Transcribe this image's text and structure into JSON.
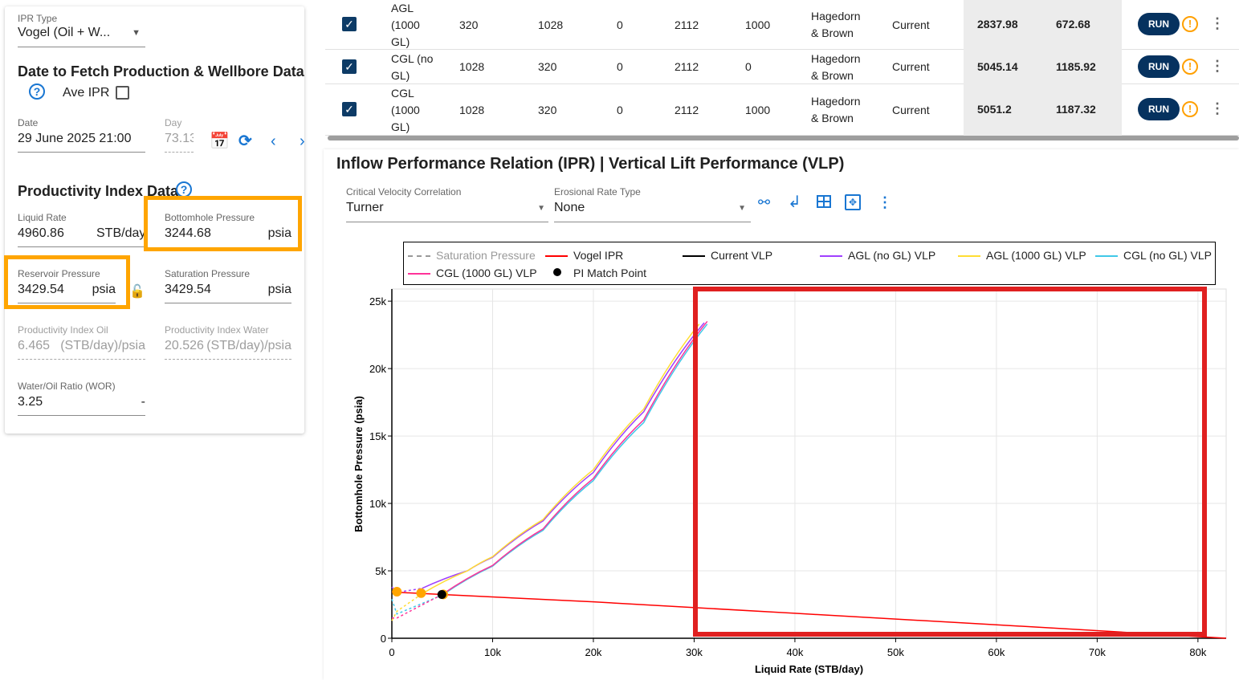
{
  "left_panel": {
    "ipr_type": {
      "label": "IPR Type",
      "value": "Vogel (Oil + W..."
    },
    "date_section_title": "Date to Fetch Production & Wellbore Data",
    "ave_ipr_label": "Ave IPR",
    "ave_ipr_checked": false,
    "date": {
      "label": "Date",
      "value": "29 June 2025 21:00"
    },
    "day": {
      "label": "Day",
      "value": "73.13"
    },
    "pi_section_title": "Productivity Index Data",
    "liquid_rate": {
      "label": "Liquid Rate",
      "value": "4960.86",
      "unit": "STB/day"
    },
    "bhp": {
      "label": "Bottomhole Pressure",
      "value": "3244.68",
      "unit": "psia"
    },
    "reservoir_pressure": {
      "label": "Reservoir Pressure",
      "value": "3429.54",
      "unit": "psia"
    },
    "saturation_pressure": {
      "label": "Saturation Pressure",
      "value": "3429.54",
      "unit": "psia"
    },
    "pi_oil": {
      "label": "Productivity Index Oil",
      "value": "6.465",
      "unit": "(STB/day)/psia"
    },
    "pi_water": {
      "label": "Productivity Index Water",
      "value": "20.526",
      "unit": "(STB/day)/psia"
    },
    "wor": {
      "label": "Water/Oil Ratio (WOR)",
      "value": "3.25",
      "unit": "-"
    },
    "highlight_color": "#ffa500"
  },
  "table": {
    "rows": [
      {
        "name": "AGL (1000 GL)",
        "c1": "320",
        "c2": "1028",
        "c3": "0",
        "c4": "2112",
        "c5": "1000",
        "correlation": "Hagedorn & Brown",
        "status": "Current",
        "r1": "2837.98",
        "r2": "672.68",
        "run": "RUN"
      },
      {
        "name": "CGL (no GL)",
        "c1": "1028",
        "c2": "320",
        "c3": "0",
        "c4": "2112",
        "c5": "0",
        "correlation": "Hagedorn & Brown",
        "status": "Current",
        "r1": "5045.14",
        "r2": "1185.92",
        "run": "RUN"
      },
      {
        "name": "CGL (1000 GL)",
        "c1": "1028",
        "c2": "320",
        "c3": "0",
        "c4": "2112",
        "c5": "1000",
        "correlation": "Hagedorn & Brown",
        "status": "Current",
        "r1": "5051.2",
        "r2": "1187.32",
        "run": "RUN"
      }
    ]
  },
  "chart_panel": {
    "title": "Inflow Performance Relation (IPR) | Vertical Lift Performance (VLP)",
    "critical_velocity": {
      "label": "Critical Velocity Correlation",
      "value": "Turner"
    },
    "erosional_rate": {
      "label": "Erosional Rate Type",
      "value": "None"
    },
    "toolbar_icons": [
      "nodes-icon",
      "return-icon",
      "table-icon",
      "fit-icon",
      "more-vert-icon"
    ]
  },
  "chart_data": {
    "type": "line",
    "xlabel": "Liquid Rate (STB/day)",
    "ylabel": "Bottomhole Pressure (psia)",
    "xlim": [
      0,
      82800
    ],
    "ylim": [
      0,
      25900
    ],
    "xticks": [
      0,
      10000,
      20000,
      30000,
      40000,
      50000,
      60000,
      70000,
      80000
    ],
    "xtick_labels": [
      "0",
      "10k",
      "20k",
      "30k",
      "40k",
      "50k",
      "60k",
      "70k",
      "80k"
    ],
    "yticks": [
      0,
      5000,
      10000,
      15000,
      20000,
      25000
    ],
    "ytick_labels": [
      "0",
      "5k",
      "10k",
      "15k",
      "20k",
      "25k"
    ],
    "grid": true,
    "legend_placement": "top",
    "series": [
      {
        "name": "Saturation Pressure",
        "color": "#999999",
        "dash": true,
        "x": [],
        "y": []
      },
      {
        "name": "Vogel IPR",
        "color": "#ff0000",
        "x": [
          0,
          5000,
          20000,
          40000,
          60000,
          82800
        ],
        "y": [
          3429,
          3245,
          2700,
          1850,
          1000,
          0
        ]
      },
      {
        "name": "Current VLP",
        "color": "#000000",
        "x": [],
        "y": []
      },
      {
        "name": "AGL (no GL) VLP",
        "color": "#a040ff",
        "x": [
          0,
          500,
          3000,
          7500,
          10000,
          15000,
          20000,
          25000,
          31000
        ],
        "y": [
          3800,
          3400,
          3700,
          5000,
          6000,
          8700,
          12300,
          16800,
          23400
        ]
      },
      {
        "name": "AGL (1000 GL) VLP",
        "color": "#ffdd33",
        "x": [
          0,
          500,
          3000,
          7500,
          10000,
          15000,
          20000,
          25000,
          30500
        ],
        "y": [
          1300,
          2000,
          3300,
          5000,
          6050,
          8800,
          12500,
          17000,
          23300
        ]
      },
      {
        "name": "CGL (no GL) VLP",
        "color": "#40c8e8",
        "x": [
          0,
          500,
          5000,
          10000,
          15000,
          20000,
          25000,
          31300
        ],
        "y": [
          2900,
          1800,
          3200,
          5350,
          8000,
          11700,
          16000,
          23300
        ]
      },
      {
        "name": "CGL (1000 GL) VLP",
        "color": "#ff3399",
        "x": [
          0,
          500,
          5000,
          10000,
          15000,
          20000,
          25000,
          31300
        ],
        "y": [
          1500,
          1500,
          3250,
          5400,
          8100,
          11850,
          16200,
          23500
        ]
      }
    ],
    "operating_points": {
      "color": "#ffa500",
      "x": [
        500,
        2900,
        5100
      ],
      "y": [
        3450,
        3350,
        3250
      ]
    },
    "pi_match_point": {
      "name": "PI Match Point",
      "x": 4960.86,
      "y": 3244.68,
      "color": "#000000"
    },
    "annotation_box_color": "#e02020"
  }
}
